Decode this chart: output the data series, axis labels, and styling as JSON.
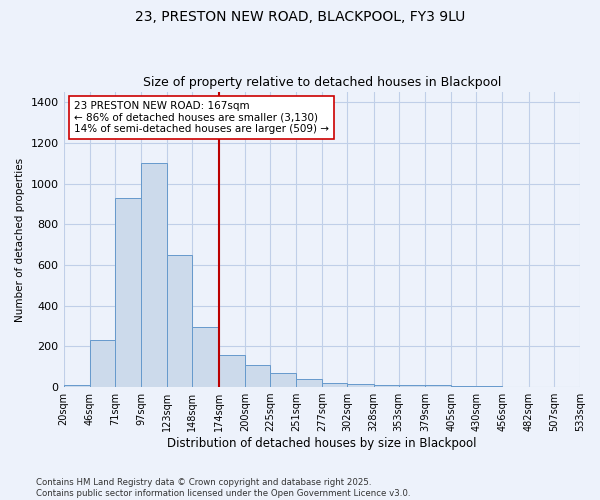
{
  "title": "23, PRESTON NEW ROAD, BLACKPOOL, FY3 9LU",
  "subtitle": "Size of property relative to detached houses in Blackpool",
  "xlabel": "Distribution of detached houses by size in Blackpool",
  "ylabel": "Number of detached properties",
  "tick_labels": [
    "20sqm",
    "46sqm",
    "71sqm",
    "97sqm",
    "123sqm",
    "148sqm",
    "174sqm",
    "200sqm",
    "225sqm",
    "251sqm",
    "277sqm",
    "302sqm",
    "328sqm",
    "353sqm",
    "379sqm",
    "405sqm",
    "430sqm",
    "456sqm",
    "482sqm",
    "507sqm",
    "533sqm"
  ],
  "bin_edges": [
    20,
    46,
    71,
    97,
    123,
    148,
    174,
    200,
    225,
    251,
    277,
    302,
    328,
    353,
    379,
    405,
    430,
    456,
    482,
    507,
    533
  ],
  "values": [
    10,
    230,
    930,
    1100,
    650,
    295,
    160,
    110,
    70,
    38,
    18,
    14,
    10,
    10,
    8,
    4,
    4,
    2,
    1,
    1
  ],
  "bar_color": "#ccdaeb",
  "bar_edge_color": "#6699cc",
  "vline_x": 174,
  "vline_color": "#bb0000",
  "annotation_text": "23 PRESTON NEW ROAD: 167sqm\n← 86% of detached houses are smaller (3,130)\n14% of semi-detached houses are larger (509) →",
  "annotation_box_facecolor": "#ffffff",
  "annotation_box_edgecolor": "#cc0000",
  "ylim": [
    0,
    1450
  ],
  "yticks": [
    0,
    200,
    400,
    600,
    800,
    1000,
    1200,
    1400
  ],
  "grid_color": "#c0cfe8",
  "bg_color": "#edf2fb",
  "footer": "Contains HM Land Registry data © Crown copyright and database right 2025.\nContains public sector information licensed under the Open Government Licence v3.0.",
  "title_fontsize": 10,
  "subtitle_fontsize": 9,
  "annot_fontsize": 7.5,
  "xlabel_fontsize": 8.5,
  "ylabel_fontsize": 7.5,
  "xtick_fontsize": 7,
  "ytick_fontsize": 8
}
